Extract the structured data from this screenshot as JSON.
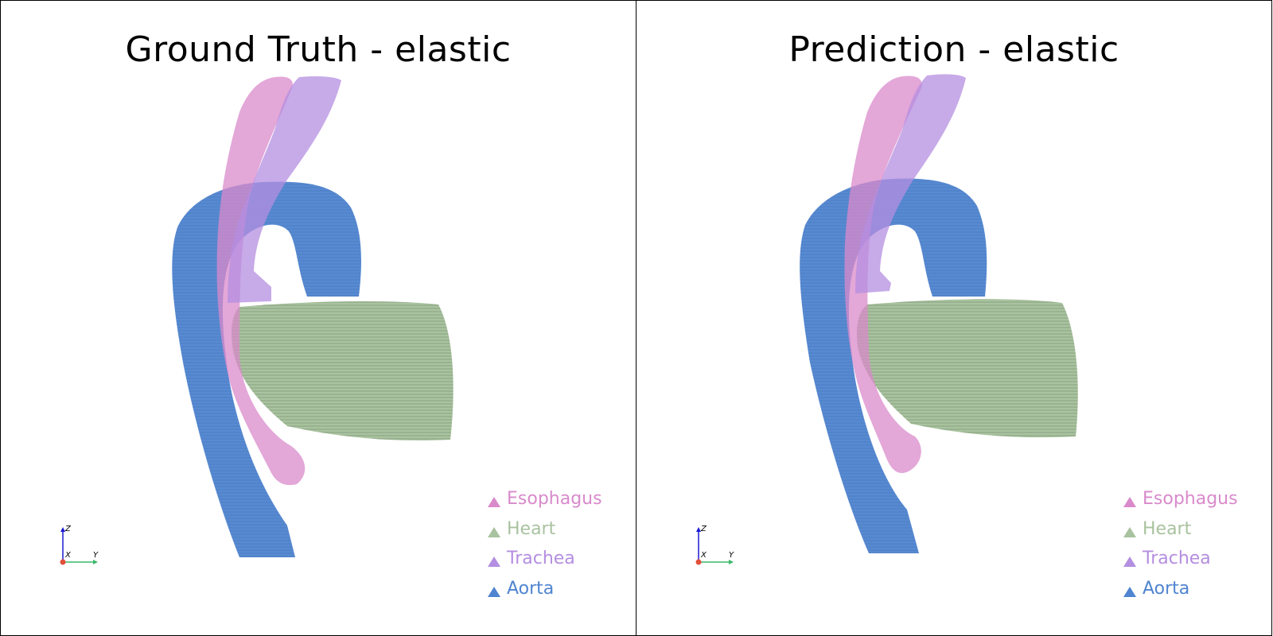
{
  "panels": [
    {
      "title": "Ground Truth - elastic",
      "legend": [
        {
          "label": "Esophagus",
          "color": "#d98acb"
        },
        {
          "label": "Heart",
          "color": "#a9c29f"
        },
        {
          "label": "Trachea",
          "color": "#b48ee0"
        },
        {
          "label": "Aorta",
          "color": "#4f84d0"
        }
      ],
      "axes": {
        "z": "Z",
        "x": "X",
        "y": "Y"
      }
    },
    {
      "title": "Prediction - elastic",
      "legend": [
        {
          "label": "Esophagus",
          "color": "#d98acb"
        },
        {
          "label": "Heart",
          "color": "#a9c29f"
        },
        {
          "label": "Trachea",
          "color": "#b48ee0"
        },
        {
          "label": "Aorta",
          "color": "#4f84d0"
        }
      ],
      "axes": {
        "z": "Z",
        "x": "X",
        "y": "Y"
      }
    }
  ]
}
